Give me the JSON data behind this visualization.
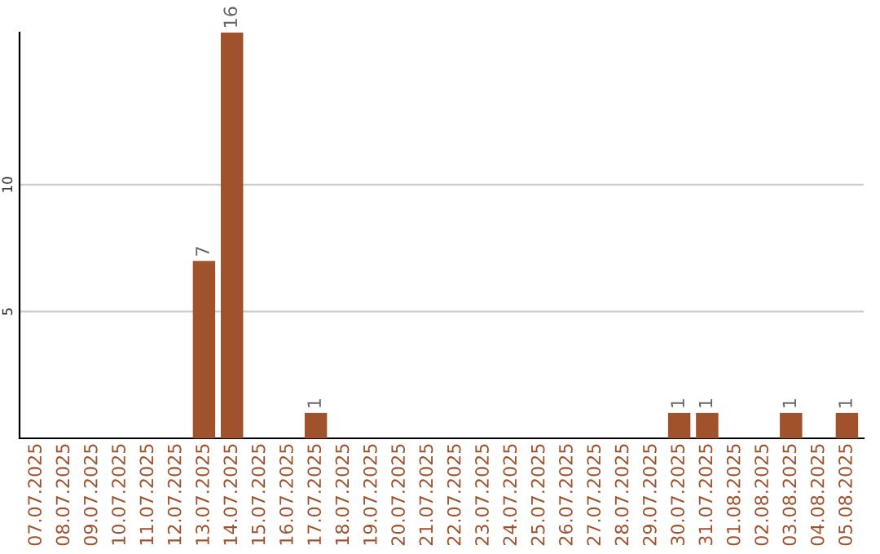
{
  "chart_data": {
    "type": "bar",
    "categories": [
      "07.07.2025",
      "08.07.2025",
      "09.07.2025",
      "10.07.2025",
      "11.07.2025",
      "12.07.2025",
      "13.07.2025",
      "14.07.2025",
      "15.07.2025",
      "16.07.2025",
      "17.07.2025",
      "18.07.2025",
      "19.07.2025",
      "20.07.2025",
      "21.07.2025",
      "22.07.2025",
      "23.07.2025",
      "24.07.2025",
      "25.07.2025",
      "26.07.2025",
      "27.07.2025",
      "28.07.2025",
      "29.07.2025",
      "30.07.2025",
      "31.07.2025",
      "01.08.2025",
      "02.08.2025",
      "03.08.2025",
      "04.08.2025",
      "05.08.2025"
    ],
    "values": [
      0,
      0,
      0,
      0,
      0,
      0,
      7,
      16,
      0,
      0,
      1,
      0,
      0,
      0,
      0,
      0,
      0,
      0,
      0,
      0,
      0,
      0,
      0,
      1,
      1,
      0,
      0,
      1,
      0,
      1
    ],
    "color": "#a0522d",
    "value_labels": [
      null,
      null,
      null,
      null,
      null,
      null,
      "7",
      "16",
      null,
      null,
      "1",
      null,
      null,
      null,
      null,
      null,
      null,
      null,
      null,
      null,
      null,
      null,
      null,
      "1",
      "1",
      null,
      null,
      "1",
      null,
      "1"
    ],
    "ylim": [
      0,
      16
    ],
    "yticks": [
      5,
      10
    ],
    "grid": "y",
    "legend": false
  }
}
